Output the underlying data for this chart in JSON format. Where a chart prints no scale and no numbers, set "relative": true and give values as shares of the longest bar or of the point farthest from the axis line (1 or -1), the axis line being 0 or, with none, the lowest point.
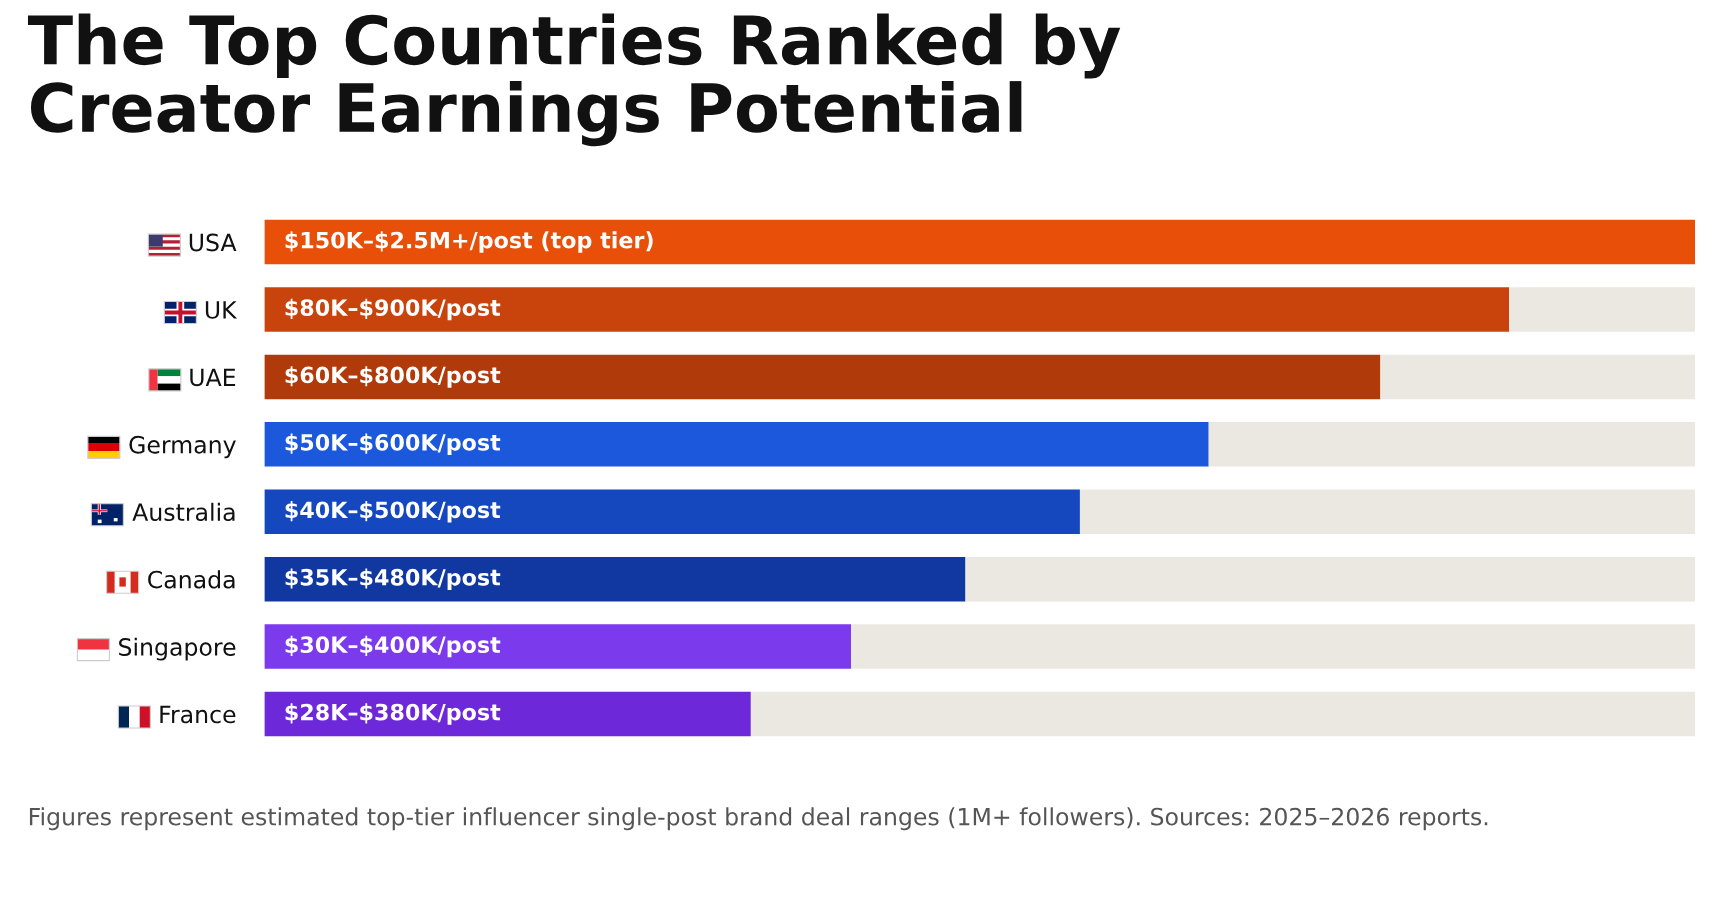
{
  "chart_data": {
    "type": "bar",
    "orientation": "horizontal",
    "stacked": true,
    "relative": true,
    "title": "The Top Countries Ranked by\nCreator Earnings Potential",
    "categories": [
      "USA",
      "UK",
      "UAE",
      "Germany",
      "Australia",
      "Canada",
      "Singapore",
      "France"
    ],
    "series": [
      {
        "colors": [
          "#e8500a",
          "#c9440c",
          "#b03a0a",
          "#1c58dc",
          "#1547bf",
          "#1038a0",
          "#7c3aed",
          "#6d28d9"
        ],
        "values": [
          1,
          0.87,
          0.78,
          0.66,
          0.57,
          0.49,
          0.41,
          0.34
        ]
      },
      {
        "color": "#ebe8e1",
        "values": [
          0,
          0.13,
          0.22,
          0.34,
          0.43,
          0.51,
          0.59,
          0.66
        ]
      }
    ],
    "annotations": [
      {
        "text": "$150K–$2.5M+/post (top tier)",
        "y": "USA"
      },
      {
        "text": "$80K–$900K/post",
        "y": "UK"
      },
      {
        "text": "$60K–$800K/post",
        "y": "UAE"
      },
      {
        "text": "$50K–$600K/post",
        "y": "Germany"
      },
      {
        "text": "$40K–$500K/post",
        "y": "Australia"
      },
      {
        "text": "$35K–$480K/post",
        "y": "Canada"
      },
      {
        "text": "$30K–$400K/post",
        "y": "Singapore"
      },
      {
        "text": "$28K–$380K/post",
        "y": "France"
      },
      "Figures represent estimated top-tier influencer single-post brand deal ranges (1M+ followers). Sources: 2025–2026 reports."
    ]
  }
}
